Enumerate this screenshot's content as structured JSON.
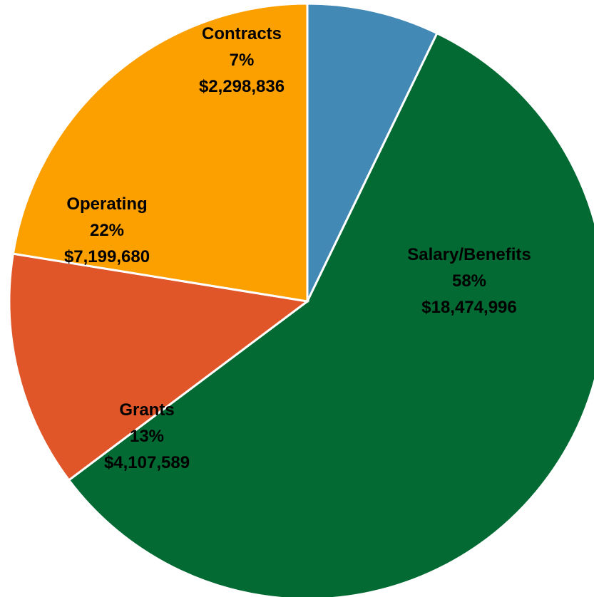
{
  "chart_data": {
    "type": "pie",
    "title": "",
    "slices": [
      {
        "name": "Contracts",
        "percent_label": "7%",
        "amount": "$2,298,836",
        "value": 2298836,
        "color": "#4389B5"
      },
      {
        "name": "Salary/Benefits",
        "percent_label": "58%",
        "amount": "$18,474,996",
        "value": 18474996,
        "color": "#036A33"
      },
      {
        "name": "Grants",
        "percent_label": "13%",
        "amount": "$4,107,589",
        "value": 4107589,
        "color": "#E05628"
      },
      {
        "name": "Operating",
        "percent_label": "22%",
        "amount": "$7,199,680",
        "value": 7199680,
        "color": "#FCA000"
      }
    ],
    "start_angle_deg": -90,
    "direction": "clockwise",
    "legend": "none"
  }
}
